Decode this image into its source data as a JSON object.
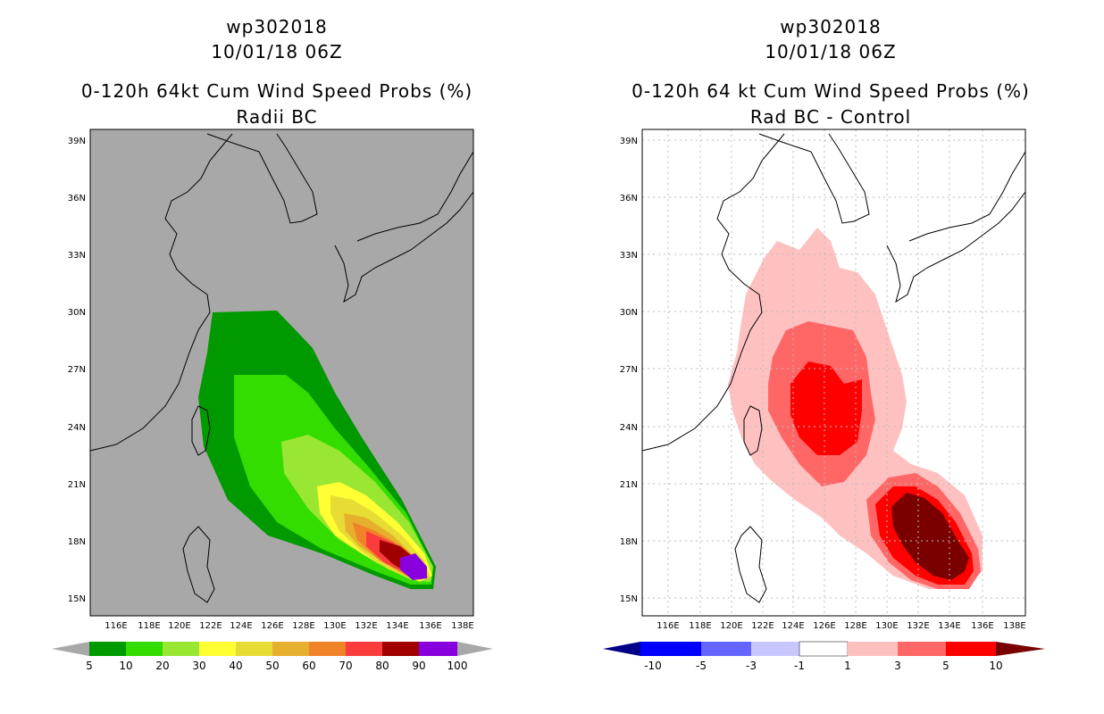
{
  "left": {
    "storm_id": "wp302018",
    "datetime": "10/01/18 06Z",
    "title": "0-120h 64kt Cum Wind Speed Probs (%)",
    "subtitle": "Radii BC",
    "colorbar": {
      "labels": [
        "5",
        "10",
        "20",
        "30",
        "40",
        "50",
        "60",
        "70",
        "80",
        "90",
        "100"
      ],
      "colors": [
        "#009900",
        "#33dd00",
        "#99e633",
        "#ffff33",
        "#e6dc33",
        "#e6af2e",
        "#f08228",
        "#fa3c3c",
        "#a00000",
        "#8800dd"
      ]
    }
  },
  "right": {
    "storm_id": "wp302018",
    "datetime": "10/01/18 06Z",
    "title": "0-120h 64 kt Cum Wind Speed Probs (%)",
    "subtitle": "Rad BC - Control",
    "colorbar": {
      "labels": [
        "-10",
        "-5",
        "-3",
        "-1",
        "1",
        "3",
        "5",
        "10"
      ],
      "colors": [
        "#0000ff",
        "#6464ff",
        "#c8c8ff",
        "#ffffff",
        "#ffc0c0",
        "#ff6666",
        "#ff0000",
        "#7a0000"
      ]
    }
  },
  "axes": {
    "lon_labels": [
      "116E",
      "118E",
      "120E",
      "122E",
      "124E",
      "126E",
      "128E",
      "130E",
      "132E",
      "134E",
      "136E",
      "138E"
    ],
    "lat_labels": [
      "39N",
      "36N",
      "33N",
      "30N",
      "27N",
      "24N",
      "21N",
      "18N",
      "15N"
    ]
  },
  "colors": {
    "land_bg_left": "#a8a8a8",
    "grid": "#bbbbbb"
  }
}
